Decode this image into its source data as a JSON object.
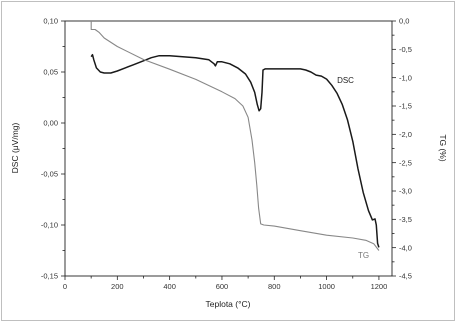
{
  "chart_data": {
    "type": "line",
    "xlabel": "Teplota (°C)",
    "ylabel_left": "DSC (μV/mg)",
    "ylabel_right": "TG (%)",
    "xlim": [
      0,
      1250
    ],
    "ylim_left": [
      -0.15,
      0.1
    ],
    "ylim_right": [
      -4.5,
      0.0
    ],
    "x_ticks": [
      "0",
      "200",
      "400",
      "600",
      "800",
      "1000",
      "1200"
    ],
    "left_ticks": [
      "0,10",
      "0,05",
      "0,00",
      "-0,05",
      "-0,10",
      "-0,15"
    ],
    "right_ticks": [
      "0,0",
      "-0,5",
      "-1,0",
      "-1,5",
      "-2,0",
      "-2,5",
      "-3,0",
      "-3,5",
      "-4,0",
      "-4,5"
    ],
    "series": [
      {
        "name": "DSC",
        "axis": "left",
        "color": "#1a1a1a",
        "points": [
          [
            100,
            0.065
          ],
          [
            105,
            0.067
          ],
          [
            110,
            0.062
          ],
          [
            120,
            0.054
          ],
          [
            135,
            0.05
          ],
          [
            150,
            0.049
          ],
          [
            175,
            0.049
          ],
          [
            200,
            0.051
          ],
          [
            230,
            0.054
          ],
          [
            260,
            0.057
          ],
          [
            300,
            0.061
          ],
          [
            330,
            0.064
          ],
          [
            360,
            0.066
          ],
          [
            400,
            0.066
          ],
          [
            450,
            0.065
          ],
          [
            500,
            0.064
          ],
          [
            550,
            0.062
          ],
          [
            570,
            0.058
          ],
          [
            575,
            0.056
          ],
          [
            582,
            0.06
          ],
          [
            600,
            0.06
          ],
          [
            630,
            0.058
          ],
          [
            660,
            0.054
          ],
          [
            690,
            0.048
          ],
          [
            710,
            0.04
          ],
          [
            725,
            0.03
          ],
          [
            735,
            0.018
          ],
          [
            742,
            0.012
          ],
          [
            748,
            0.014
          ],
          [
            753,
            0.03
          ],
          [
            757,
            0.052
          ],
          [
            765,
            0.053
          ],
          [
            800,
            0.053
          ],
          [
            850,
            0.053
          ],
          [
            900,
            0.053
          ],
          [
            920,
            0.052
          ],
          [
            940,
            0.05
          ],
          [
            960,
            0.047
          ],
          [
            980,
            0.046
          ],
          [
            1000,
            0.043
          ],
          [
            1020,
            0.037
          ],
          [
            1040,
            0.029
          ],
          [
            1060,
            0.018
          ],
          [
            1080,
            0.003
          ],
          [
            1100,
            -0.018
          ],
          [
            1120,
            -0.045
          ],
          [
            1140,
            -0.068
          ],
          [
            1160,
            -0.086
          ],
          [
            1175,
            -0.095
          ],
          [
            1185,
            -0.094
          ],
          [
            1190,
            -0.1
          ],
          [
            1195,
            -0.118
          ],
          [
            1200,
            -0.122
          ]
        ]
      },
      {
        "name": "TG",
        "axis": "right",
        "color": "#888888",
        "points": [
          [
            100,
            0.0
          ],
          [
            100,
            -0.15
          ],
          [
            115,
            -0.15
          ],
          [
            130,
            -0.2
          ],
          [
            150,
            -0.3
          ],
          [
            200,
            -0.45
          ],
          [
            300,
            -0.68
          ],
          [
            400,
            -0.85
          ],
          [
            500,
            -1.03
          ],
          [
            600,
            -1.25
          ],
          [
            650,
            -1.37
          ],
          [
            680,
            -1.5
          ],
          [
            700,
            -1.7
          ],
          [
            715,
            -2.1
          ],
          [
            725,
            -2.5
          ],
          [
            733,
            -2.9
          ],
          [
            740,
            -3.3
          ],
          [
            748,
            -3.58
          ],
          [
            760,
            -3.6
          ],
          [
            800,
            -3.62
          ],
          [
            900,
            -3.7
          ],
          [
            1000,
            -3.78
          ],
          [
            1100,
            -3.83
          ],
          [
            1150,
            -3.87
          ],
          [
            1180,
            -3.93
          ],
          [
            1200,
            -4.05
          ]
        ]
      }
    ]
  }
}
